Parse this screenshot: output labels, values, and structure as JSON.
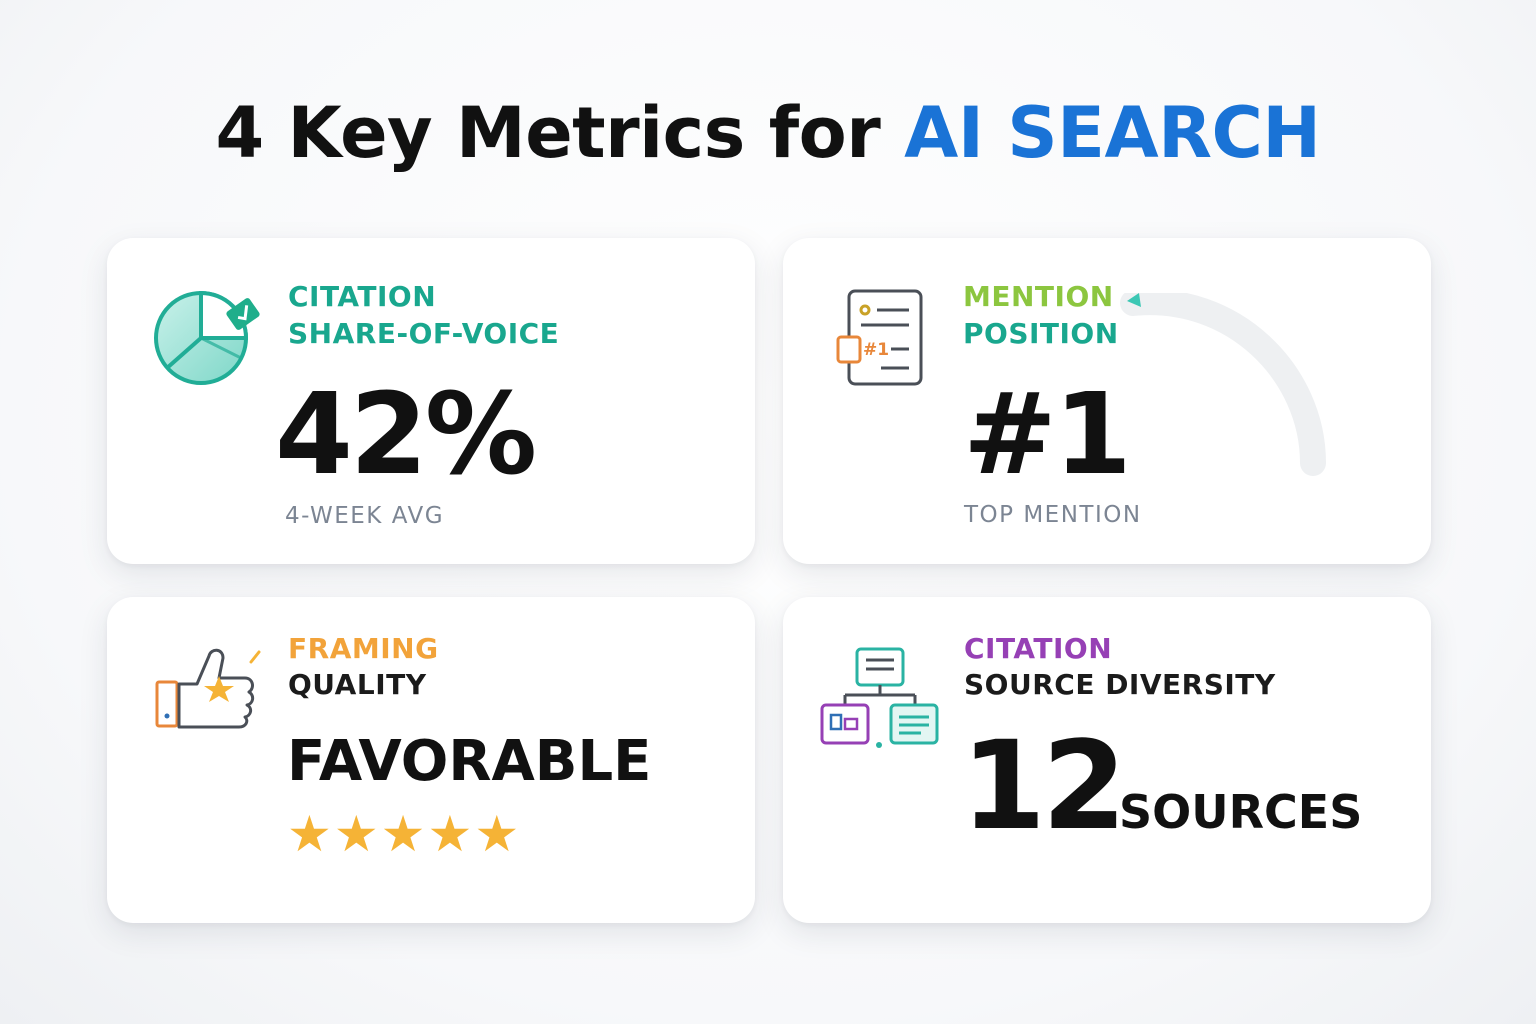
{
  "title": {
    "prefix": "4 Key Metrics for ",
    "highlight": "AI SEARCH",
    "accent_color": "#1a73d6"
  },
  "cards": [
    {
      "label_line1": "CITATION",
      "label_line2": "SHARE-OF-VOICE",
      "value": "42%",
      "subtext": "4-WEEK AVG",
      "icon": "pie-chart-check-icon",
      "label_color": "#19a78e"
    },
    {
      "label_line1": "MENTION",
      "label_line2": "POSITION",
      "value": "#1",
      "subtext": "TOP MENTION",
      "icon": "ranked-list-icon",
      "label_colors": [
        "#8cc63f",
        "#19a78e"
      ]
    },
    {
      "label_line1": "FRAMING",
      "label_line2": "QUALITY",
      "value": "FAVORABLE",
      "rating": 5,
      "rating_max": 5,
      "icon": "thumbs-up-star-icon",
      "label_colors": [
        "#f2a33a",
        "#1b1b1b"
      ]
    },
    {
      "label_line1": "CITATION",
      "label_line2": "SOURCE DIVERSITY",
      "value": "12",
      "unit": "SOURCES",
      "icon": "source-network-icon",
      "label_colors": [
        "#9640b5",
        "#1b1b1b"
      ]
    }
  ]
}
